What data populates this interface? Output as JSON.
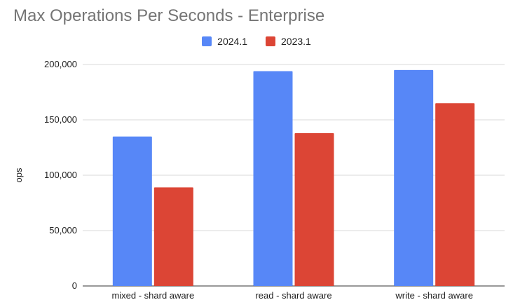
{
  "chart_data": {
    "type": "bar",
    "title": "Max Operations Per Seconds - Enterprise",
    "xlabel": "",
    "ylabel": "ops",
    "ylim": [
      0,
      200000
    ],
    "yticks": [
      "0",
      "50,000",
      "100,000",
      "150,000",
      "200,000"
    ],
    "categories": [
      "mixed - shard aware",
      "read - shard aware",
      "write - shard aware"
    ],
    "series": [
      {
        "name": "2024.1",
        "color": "#5787f7",
        "values": [
          135000,
          194000,
          195000
        ]
      },
      {
        "name": "2023.1",
        "color": "#dc4535",
        "values": [
          89000,
          138000,
          165000
        ]
      }
    ],
    "legend_position": "top",
    "grid": true
  }
}
